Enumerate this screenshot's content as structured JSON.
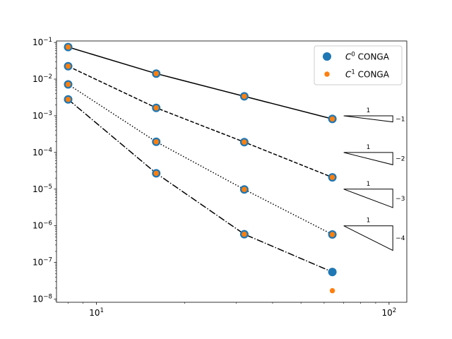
{
  "chart_data": {
    "type": "scatter",
    "xscale": "log",
    "yscale": "log",
    "xlim": [
      7.3,
      115
    ],
    "ylim": [
      8.2e-09,
      0.11
    ],
    "x_ticks": [
      {
        "value": 10,
        "base": "10",
        "exp": "1"
      },
      {
        "value": 100,
        "base": "10",
        "exp": "2"
      }
    ],
    "y_ticks": [
      {
        "value": 1e-08,
        "base": "10",
        "exp": "−8"
      },
      {
        "value": 1e-07,
        "base": "10",
        "exp": "−7"
      },
      {
        "value": 1e-06,
        "base": "10",
        "exp": "−6"
      },
      {
        "value": 1e-05,
        "base": "10",
        "exp": "−5"
      },
      {
        "value": 0.0001,
        "base": "10",
        "exp": "−4"
      },
      {
        "value": 0.001,
        "base": "10",
        "exp": "−3"
      },
      {
        "value": 0.01,
        "base": "10",
        "exp": "−2"
      },
      {
        "value": 0.1,
        "base": "10",
        "exp": "−1"
      }
    ],
    "x": [
      8,
      16,
      32,
      64
    ],
    "series": [
      {
        "name": "C⁰ CONGA",
        "legend_base": "C",
        "legend_exp": "0",
        "legend_rest": " CONGA",
        "color": "#1f77b4",
        "marker_size": "large",
        "lines": [
          {
            "style": "solid",
            "values": [
              0.075,
              0.0142,
              0.0034,
              0.00082
            ]
          },
          {
            "style": "dashed",
            "values": [
              0.0225,
              0.00165,
              0.000192,
              2.1e-05
            ]
          },
          {
            "style": "dotted",
            "values": [
              0.0072,
              0.000195,
              9.8e-06,
              5.8e-07
            ]
          },
          {
            "style": "dashdot",
            "values": [
              0.0028,
              2.7e-05,
              5.9e-07,
              5.5e-08
            ]
          }
        ]
      },
      {
        "name": "C¹ CONGA",
        "legend_base": "C",
        "legend_exp": "1",
        "legend_rest": " CONGA",
        "color": "#ff7f0e",
        "marker_size": "small",
        "lines": [
          {
            "style": "solid",
            "values": [
              0.075,
              0.0142,
              0.0034,
              0.00082
            ]
          },
          {
            "style": "dashed",
            "values": [
              0.0225,
              0.00165,
              0.000192,
              2.1e-05
            ]
          },
          {
            "style": "dotted",
            "values": [
              0.0072,
              0.000195,
              9.8e-06,
              5.8e-07
            ]
          },
          {
            "style": "dashdot",
            "values": [
              0.0028,
              2.7e-05,
              5.9e-07,
              1.7e-08
            ]
          }
        ]
      }
    ],
    "slope_triangles": [
      {
        "run_label": "1",
        "slope_label": "−1",
        "slope": -1,
        "anchor_y": 0.001
      },
      {
        "run_label": "1",
        "slope_label": "−2",
        "slope": -2,
        "anchor_y": 0.0001
      },
      {
        "run_label": "1",
        "slope_label": "−3",
        "slope": -3,
        "anchor_y": 1e-05
      },
      {
        "run_label": "1",
        "slope_label": "−4",
        "slope": -4,
        "anchor_y": 1e-06
      }
    ],
    "slope_triangle_x": [
      70,
      103
    ],
    "legend_position": "top-right",
    "grid": false,
    "title": "",
    "xlabel": "",
    "ylabel": ""
  }
}
